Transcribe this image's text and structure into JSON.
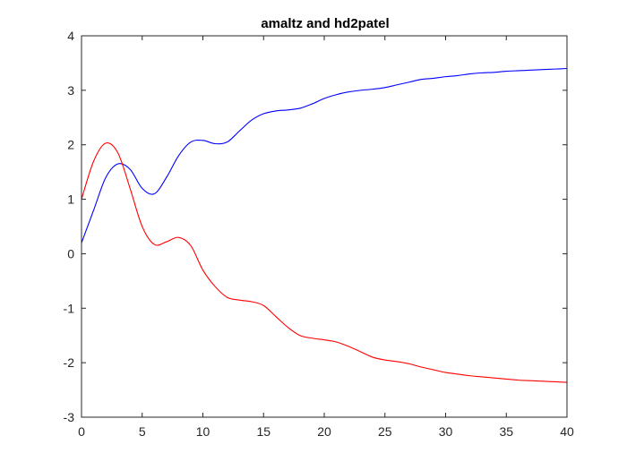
{
  "chart_data": {
    "type": "line",
    "title": "amaltz and hd2patel",
    "xlabel": "",
    "ylabel": "",
    "xlim": [
      0,
      40
    ],
    "ylim": [
      -3,
      4
    ],
    "x_ticks": [
      0,
      5,
      10,
      15,
      20,
      25,
      30,
      35,
      40
    ],
    "y_ticks": [
      4,
      3,
      2,
      1,
      0,
      -1,
      -2,
      -3
    ],
    "grid": false,
    "legend": "none",
    "series": [
      {
        "color": "#0000ff",
        "points": [
          [
            0,
            0.2
          ],
          [
            1,
            0.8
          ],
          [
            2,
            1.4
          ],
          [
            3,
            1.65
          ],
          [
            4,
            1.55
          ],
          [
            5,
            1.2
          ],
          [
            6,
            1.1
          ],
          [
            7,
            1.4
          ],
          [
            8,
            1.8
          ],
          [
            9,
            2.05
          ],
          [
            10,
            2.08
          ],
          [
            11,
            2.02
          ],
          [
            12,
            2.05
          ],
          [
            13,
            2.25
          ],
          [
            14,
            2.45
          ],
          [
            15,
            2.57
          ],
          [
            16,
            2.62
          ],
          [
            17,
            2.64
          ],
          [
            18,
            2.67
          ],
          [
            19,
            2.75
          ],
          [
            20,
            2.85
          ],
          [
            21,
            2.92
          ],
          [
            22,
            2.97
          ],
          [
            23,
            3.0
          ],
          [
            24,
            3.02
          ],
          [
            25,
            3.05
          ],
          [
            26,
            3.1
          ],
          [
            27,
            3.15
          ],
          [
            28,
            3.2
          ],
          [
            29,
            3.22
          ],
          [
            30,
            3.25
          ],
          [
            31,
            3.27
          ],
          [
            32,
            3.3
          ],
          [
            33,
            3.32
          ],
          [
            34,
            3.33
          ],
          [
            35,
            3.35
          ],
          [
            36,
            3.36
          ],
          [
            37,
            3.37
          ],
          [
            38,
            3.38
          ],
          [
            39,
            3.39
          ],
          [
            40,
            3.4
          ]
        ]
      },
      {
        "color": "#ff0000",
        "points": [
          [
            0,
            1.0
          ],
          [
            1,
            1.7
          ],
          [
            2,
            2.03
          ],
          [
            3,
            1.85
          ],
          [
            4,
            1.2
          ],
          [
            5,
            0.5
          ],
          [
            6,
            0.17
          ],
          [
            7,
            0.22
          ],
          [
            8,
            0.3
          ],
          [
            9,
            0.15
          ],
          [
            10,
            -0.3
          ],
          [
            11,
            -0.6
          ],
          [
            12,
            -0.8
          ],
          [
            13,
            -0.85
          ],
          [
            14,
            -0.88
          ],
          [
            15,
            -0.95
          ],
          [
            16,
            -1.15
          ],
          [
            17,
            -1.35
          ],
          [
            18,
            -1.5
          ],
          [
            19,
            -1.55
          ],
          [
            20,
            -1.58
          ],
          [
            21,
            -1.62
          ],
          [
            22,
            -1.7
          ],
          [
            23,
            -1.8
          ],
          [
            24,
            -1.9
          ],
          [
            25,
            -1.95
          ],
          [
            26,
            -1.98
          ],
          [
            27,
            -2.02
          ],
          [
            28,
            -2.08
          ],
          [
            29,
            -2.13
          ],
          [
            30,
            -2.18
          ],
          [
            31,
            -2.21
          ],
          [
            32,
            -2.24
          ],
          [
            33,
            -2.26
          ],
          [
            34,
            -2.28
          ],
          [
            35,
            -2.3
          ],
          [
            36,
            -2.32
          ],
          [
            37,
            -2.33
          ],
          [
            38,
            -2.34
          ],
          [
            39,
            -2.35
          ],
          [
            40,
            -2.36
          ]
        ]
      }
    ]
  }
}
